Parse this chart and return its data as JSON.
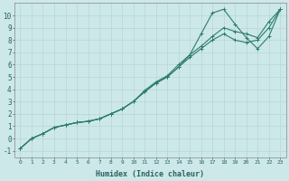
{
  "xlabel": "Humidex (Indice chaleur)",
  "bg_color": "#cce8e8",
  "grid_color": "#b8d4d4",
  "line_color": "#2d7d6b",
  "xlim": [
    -0.5,
    23.5
  ],
  "ylim": [
    -1.5,
    11.0
  ],
  "xticks": [
    0,
    1,
    2,
    3,
    4,
    5,
    6,
    7,
    8,
    9,
    10,
    11,
    12,
    13,
    14,
    15,
    16,
    17,
    18,
    19,
    20,
    21,
    22,
    23
  ],
  "yticks": [
    -1,
    0,
    1,
    2,
    3,
    4,
    5,
    6,
    7,
    8,
    9,
    10
  ],
  "series1_x": [
    0,
    1,
    2,
    3,
    4,
    5,
    6,
    7,
    8,
    9,
    10,
    11,
    12,
    13,
    14,
    15,
    16,
    17,
    18,
    19,
    20,
    21,
    22,
    23
  ],
  "series1_y": [
    -0.8,
    0.0,
    0.4,
    0.9,
    1.1,
    1.3,
    1.4,
    1.6,
    2.0,
    2.4,
    3.0,
    3.8,
    4.5,
    5.0,
    5.8,
    6.6,
    7.3,
    8.0,
    8.5,
    8.0,
    7.8,
    8.0,
    9.0,
    10.5
  ],
  "series2_x": [
    0,
    1,
    2,
    3,
    4,
    5,
    6,
    7,
    8,
    9,
    10,
    11,
    12,
    13,
    14,
    15,
    16,
    17,
    18,
    19,
    20,
    21,
    22,
    23
  ],
  "series2_y": [
    -0.8,
    0.0,
    0.4,
    0.9,
    1.1,
    1.3,
    1.4,
    1.6,
    2.0,
    2.4,
    3.0,
    3.8,
    4.5,
    5.0,
    5.8,
    6.8,
    8.5,
    10.2,
    10.5,
    9.3,
    8.2,
    7.3,
    8.3,
    10.5
  ],
  "series3_x": [
    0,
    1,
    2,
    3,
    4,
    5,
    6,
    7,
    8,
    9,
    10,
    11,
    12,
    13,
    14,
    15,
    16,
    17,
    18,
    19,
    20,
    21,
    22,
    23
  ],
  "series3_y": [
    -0.8,
    0.0,
    0.4,
    0.9,
    1.1,
    1.3,
    1.4,
    1.6,
    2.0,
    2.4,
    3.0,
    3.9,
    4.6,
    5.1,
    6.0,
    6.8,
    7.5,
    8.3,
    9.0,
    8.7,
    8.5,
    8.2,
    9.5,
    10.5
  ]
}
